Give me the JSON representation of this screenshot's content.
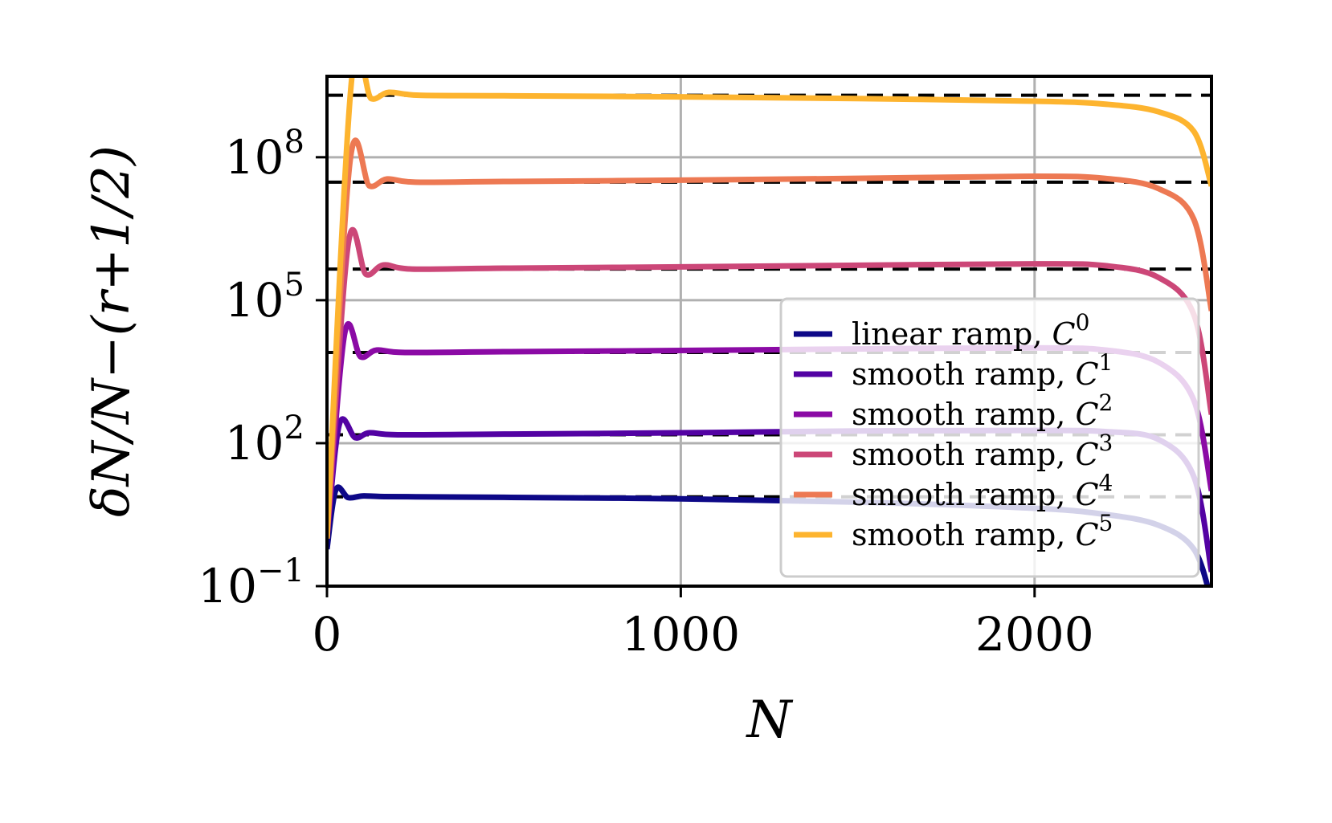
{
  "chart_data": {
    "type": "line",
    "xlabel": "N",
    "ylabel": "δN/N−(r+1/2)",
    "yscale": "log",
    "xlim": [
      0,
      2500
    ],
    "ylim": [
      0.1,
      5000000000
    ],
    "grid": true,
    "legend_position": "lower-right",
    "x_ticks": [
      {
        "value": 0,
        "label": "0"
      },
      {
        "value": 1000,
        "label": "1000"
      },
      {
        "value": 2000,
        "label": "2000"
      }
    ],
    "y_ticks": [
      {
        "value": 0.1,
        "base": "10",
        "exp": "−1"
      },
      {
        "value": 100,
        "base": "10",
        "exp": "2"
      },
      {
        "value": 100000,
        "base": "10",
        "exp": "5"
      },
      {
        "value": 100000000,
        "base": "10",
        "exp": "8"
      }
    ],
    "series": [
      {
        "name": "linear ramp, C0",
        "label_text": "linear ramp, ",
        "label_c": "C",
        "label_exp": "0",
        "color": "#0d0887",
        "reference_level": 7.5,
        "x": [
          0,
          25,
          60,
          100,
          150,
          250,
          500,
          1000,
          1500,
          2000,
          2200,
          2350,
          2450,
          2500
        ],
        "y": [
          0.6,
          10.5,
          7.2,
          7.8,
          7.6,
          7.5,
          7.3,
          6.8,
          5.8,
          4.3,
          3.2,
          1.9,
          0.6,
          0.05
        ]
      },
      {
        "name": "smooth ramp, C1",
        "label_text": "smooth ramp, ",
        "label_c": "C",
        "label_exp": "1",
        "color": "#5302a3",
        "reference_level": 150,
        "x": [
          0,
          35,
          80,
          120,
          200,
          500,
          1000,
          1500,
          2000,
          2200,
          2350,
          2450,
          2500
        ],
        "y": [
          1,
          250,
          130,
          165,
          150,
          155,
          165,
          180,
          185,
          175,
          120,
          20,
          0.2
        ]
      },
      {
        "name": "smooth ramp, C2",
        "label_text": "smooth ramp, ",
        "label_c": "C",
        "label_exp": "2",
        "color": "#8b0aa5",
        "reference_level": 8000,
        "x": [
          0,
          50,
          95,
          140,
          220,
          500,
          1000,
          1500,
          2000,
          2200,
          2350,
          2450,
          2500
        ],
        "y": [
          1,
          20000,
          6500,
          9000,
          8000,
          8300,
          8800,
          9500,
          10000,
          9000,
          5000,
          800,
          10
        ]
      },
      {
        "name": "smooth ramp, C3",
        "label_text": "smooth ramp, ",
        "label_c": "C",
        "label_exp": "3",
        "color": "#cc4778",
        "reference_level": 450000,
        "x": [
          0,
          60,
          110,
          160,
          240,
          500,
          1000,
          1500,
          2000,
          2200,
          2350,
          2450,
          2500
        ],
        "y": [
          1,
          1500000,
          350000,
          550000,
          450000,
          470000,
          500000,
          540000,
          580000,
          530000,
          300000,
          50000,
          400
        ]
      },
      {
        "name": "smooth ramp, C4",
        "label_text": "smooth ramp, ",
        "label_c": "C",
        "label_exp": "4",
        "color": "#ed7953",
        "reference_level": 30000000,
        "x": [
          0,
          65,
          120,
          170,
          250,
          500,
          1000,
          1500,
          2000,
          2200,
          2350,
          2450,
          2500
        ],
        "y": [
          1,
          80000000,
          25000000,
          35000000,
          30000000,
          31000000,
          33000000,
          36000000,
          40000000,
          36000000,
          22000000,
          5000000,
          60000
        ]
      },
      {
        "name": "smooth ramp, C5",
        "label_text": "smooth ramp, ",
        "label_c": "C",
        "label_exp": "5",
        "color": "#fdb42f",
        "reference_level": 2000000000,
        "x": [
          0,
          70,
          125,
          175,
          260,
          500,
          1000,
          1500,
          2000,
          2200,
          2350,
          2450,
          2500
        ],
        "y": [
          1,
          4500000000,
          1700000000,
          2300000000,
          2000000000,
          1950000000,
          1850000000,
          1700000000,
          1500000000,
          1300000000,
          900000000,
          350000000,
          25000000
        ]
      }
    ]
  }
}
